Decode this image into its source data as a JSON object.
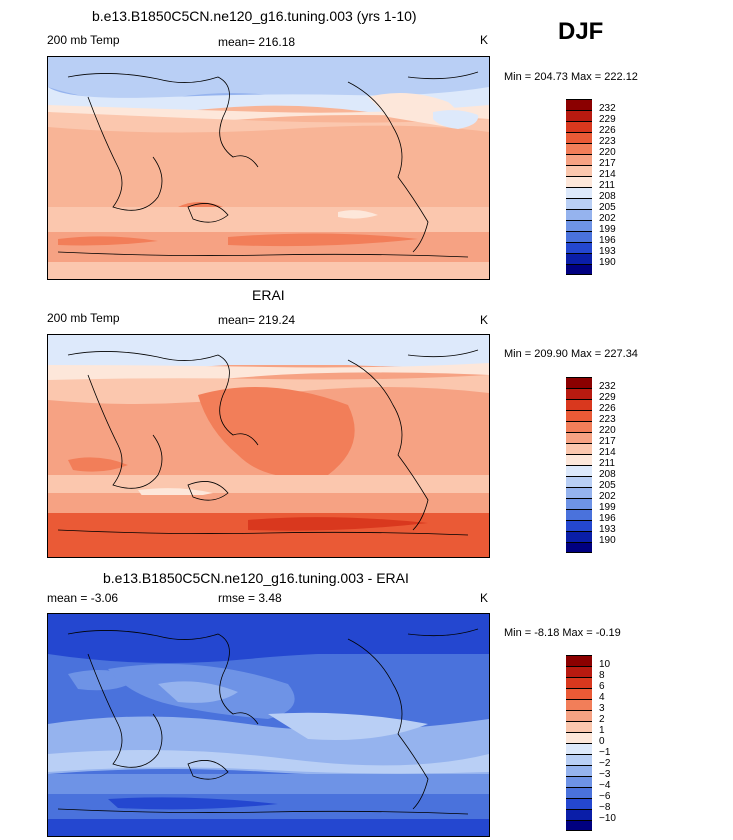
{
  "season": "DJF",
  "panels": [
    {
      "title": "b.e13.B1850C5CN.ne120_g16.tuning.003 (yrs 1-10)",
      "left_label": "200 mb Temp",
      "mid_label": "mean= 216.18",
      "units": "K",
      "minmax": "Min = 204.73 Max = 222.12",
      "legend_labels": [
        "232",
        "229",
        "226",
        "223",
        "220",
        "217",
        "214",
        "211",
        "208",
        "205",
        "202",
        "199",
        "196",
        "193",
        "190"
      ]
    },
    {
      "title": "ERAI",
      "left_label": "200 mb Temp",
      "mid_label": "mean= 219.24",
      "units": "K",
      "minmax": "Min = 209.90 Max = 227.34",
      "legend_labels": [
        "232",
        "229",
        "226",
        "223",
        "220",
        "217",
        "214",
        "211",
        "208",
        "205",
        "202",
        "199",
        "196",
        "193",
        "190"
      ]
    },
    {
      "title": "b.e13.B1850C5CN.ne120_g16.tuning.003 - ERAI",
      "left_label": "mean =  -3.06",
      "mid_label": "rmse =   3.48",
      "units": "K",
      "minmax": "Min =  -8.18 Max =  -0.19",
      "legend_labels": [
        "10",
        "8",
        "6",
        "4",
        "3",
        "2",
        "1",
        "0",
        "−1",
        "−2",
        "−3",
        "−4",
        "−6",
        "−8",
        "−10"
      ]
    }
  ],
  "colors": {
    "scale": [
      "#8b0000",
      "#b81a10",
      "#d9381e",
      "#ea5a36",
      "#f27e59",
      "#f6a283",
      "#fbc7ae",
      "#fde7da",
      "#dde9fb",
      "#b9cff5",
      "#95b3ee",
      "#6e93e6",
      "#4a72dc",
      "#2447d0",
      "#0a1ea8",
      "#000080"
    ]
  }
}
